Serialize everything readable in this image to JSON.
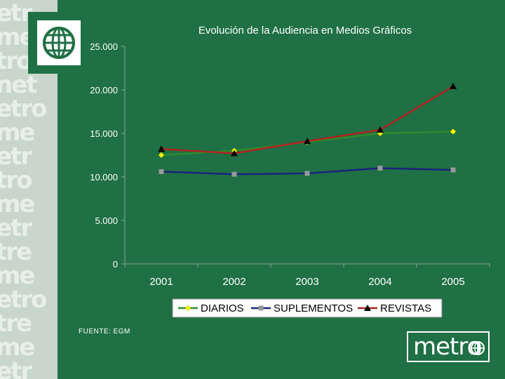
{
  "chart_data": {
    "type": "line",
    "title": "Evolución de la Audiencia en Medios Gráficos",
    "xlabel": "",
    "ylabel": "",
    "categories": [
      "2001",
      "2002",
      "2003",
      "2004",
      "2005"
    ],
    "ylim": [
      0,
      25000
    ],
    "yticks": [
      0,
      5000,
      10000,
      15000,
      20000,
      25000
    ],
    "ytick_labels": [
      "0",
      "5.000",
      "10.000",
      "15.000",
      "20.000",
      "25.000"
    ],
    "legend_position": "bottom",
    "series": [
      {
        "name": "DIARIOS",
        "values": [
          12500,
          13000,
          14000,
          15000,
          15200
        ],
        "color": "#2e8b2e",
        "marker": "diamond",
        "marker_color": "#ffff00"
      },
      {
        "name": "SUPLEMENTOS",
        "values": [
          10600,
          10300,
          10400,
          11000,
          10800
        ],
        "color": "#1a237e",
        "marker": "square",
        "marker_color": "#999999"
      },
      {
        "name": "REVISTAS",
        "values": [
          13200,
          12700,
          14100,
          15400,
          20400
        ],
        "color": "#b22222",
        "marker": "triangle",
        "marker_color": "#000000"
      }
    ]
  },
  "source_note": "FUENTE: EGM",
  "brand": {
    "name": "metro",
    "bg": "#1f7044"
  }
}
